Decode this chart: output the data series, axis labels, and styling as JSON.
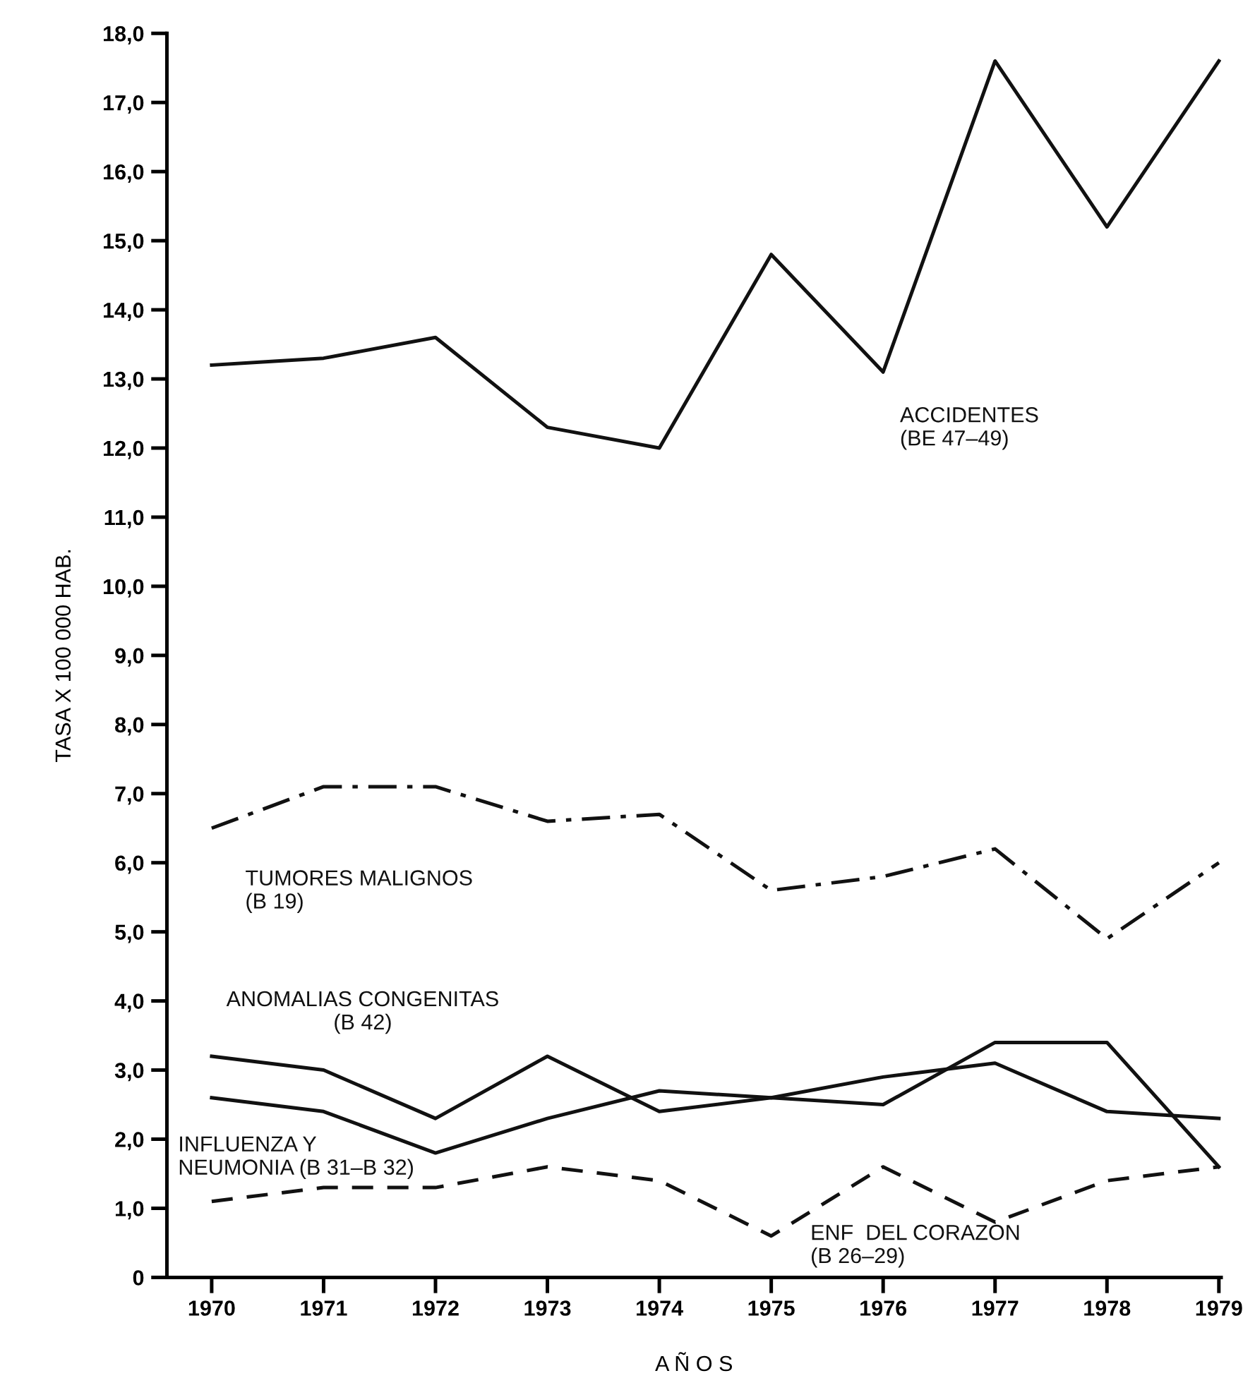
{
  "chart_data": {
    "type": "line",
    "xlabel": "A Ñ O S",
    "ylabel": "TASA X 100 000 HAB.",
    "categories": [
      "1970",
      "1971",
      "1972",
      "1973",
      "1974",
      "1975",
      "1976",
      "1977",
      "1978",
      "1979"
    ],
    "ylim": [
      0,
      18
    ],
    "yticks": [
      0,
      {
        "value": 1,
        "label": "1,0"
      },
      {
        "value": 2,
        "label": "2,0"
      },
      {
        "value": 3,
        "label": "3,0"
      },
      {
        "value": 4,
        "label": "4,0"
      },
      {
        "value": 5,
        "label": "5,0"
      },
      {
        "value": 6,
        "label": "6,0"
      },
      {
        "value": 7,
        "label": "7,0"
      },
      {
        "value": 8,
        "label": "8,0"
      },
      {
        "value": 9,
        "label": "9,0"
      },
      {
        "value": 10,
        "label": "10,0"
      },
      {
        "value": 11,
        "label": "11,0"
      },
      {
        "value": 12,
        "label": "12,0"
      },
      {
        "value": 13,
        "label": "13,0"
      },
      {
        "value": 14,
        "label": "14,0"
      },
      {
        "value": 15,
        "label": "15,0"
      },
      {
        "value": 16,
        "label": "16,0"
      },
      {
        "value": 17,
        "label": "17,0"
      },
      {
        "value": 18,
        "label": "18,0"
      }
    ],
    "grid": false,
    "legend": false,
    "marker": "none",
    "series": [
      {
        "name": "ACCIDENTES\n(BE 47–49)",
        "color": "#111111",
        "line_style": "solid",
        "values": [
          13.2,
          13.3,
          13.6,
          12.3,
          12.0,
          14.8,
          13.1,
          17.6,
          15.2,
          17.6
        ]
      },
      {
        "name": "TUMORES MALIGNOS\n(B 19)",
        "color": "#111111",
        "line_style": "dashdot",
        "values": [
          6.5,
          7.1,
          7.1,
          6.6,
          6.7,
          5.6,
          5.8,
          6.2,
          4.9,
          6.0
        ]
      },
      {
        "name": "ANOMALIAS CONGENITAS\n(B 42)",
        "color": "#111111",
        "line_style": "solid",
        "values": [
          3.2,
          3.0,
          2.3,
          3.2,
          2.4,
          2.6,
          2.5,
          3.4,
          3.4,
          1.6
        ]
      },
      {
        "name": "INFLUENZA Y\nNEUMONIA (B 31–B 32)",
        "color": "#111111",
        "line_style": "solid",
        "values": [
          2.6,
          2.4,
          1.8,
          2.3,
          2.7,
          2.6,
          2.9,
          3.1,
          2.4,
          2.3
        ]
      },
      {
        "name": "ENF  DEL CORAZON\n(B 26–29)",
        "color": "#111111",
        "line_style": "dashed",
        "values": [
          1.1,
          1.3,
          1.3,
          1.6,
          1.4,
          0.6,
          1.6,
          0.8,
          1.4,
          1.6
        ]
      }
    ]
  }
}
